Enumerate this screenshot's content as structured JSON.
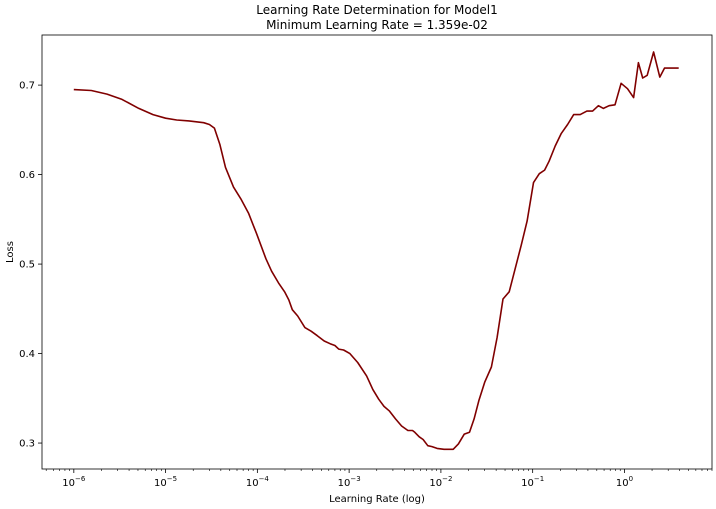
{
  "chart_data": {
    "type": "line",
    "title": "Learning Rate Determination for Model1",
    "subtitle": "Minimum Learning Rate = 1.359e-02",
    "xlabel": "Learning Rate (log)",
    "ylabel": "Loss",
    "xscale": "log",
    "xlim": [
      4.5e-07,
      9.0
    ],
    "ylim": [
      0.271,
      0.756
    ],
    "grid": false,
    "line_color": "#800000",
    "x_ticks": [
      {
        "value": 1e-06,
        "base": "10",
        "exp": "−6"
      },
      {
        "value": 1e-05,
        "base": "10",
        "exp": "−5"
      },
      {
        "value": 0.0001,
        "base": "10",
        "exp": "−4"
      },
      {
        "value": 0.001,
        "base": "10",
        "exp": "−3"
      },
      {
        "value": 0.01,
        "base": "10",
        "exp": "−2"
      },
      {
        "value": 0.1,
        "base": "10",
        "exp": "−1"
      },
      {
        "value": 1,
        "base": "10",
        "exp": "0"
      }
    ],
    "y_ticks": [
      "0.3",
      "0.4",
      "0.5",
      "0.6",
      "0.7"
    ],
    "series": [
      {
        "x": [
          1e-06,
          1.55e-06,
          2.3e-06,
          3.35e-06,
          5.1e-06,
          7.3e-06,
          1e-05,
          1.32e-05,
          1.8e-05,
          2.6e-05,
          3e-05,
          3.4e-05,
          3.9e-05,
          4.5e-05,
          5.5e-05,
          6.6e-05,
          8e-05,
          9.8e-05,
          0.000124,
          0.000143,
          0.00017,
          0.000198,
          0.00022,
          0.00024,
          0.000275,
          0.00033,
          0.000385,
          0.00045,
          0.000535,
          0.00062,
          0.0007,
          0.00077,
          0.00087,
          0.00102,
          0.00124,
          0.00155,
          0.00181,
          0.0021,
          0.0024,
          0.00273,
          0.0032,
          0.00373,
          0.00437,
          0.0049,
          0.0052,
          0.0058,
          0.0064,
          0.0072,
          0.008,
          0.0091,
          0.0108,
          0.0136,
          0.0155,
          0.018,
          0.0205,
          0.023,
          0.026,
          0.03,
          0.0355,
          0.041,
          0.0475,
          0.0555,
          0.0645,
          0.075,
          0.087,
          0.102,
          0.118,
          0.135,
          0.151,
          0.176,
          0.205,
          0.24,
          0.28,
          0.33,
          0.39,
          0.45,
          0.52,
          0.59,
          0.68,
          0.79,
          0.92,
          1.08,
          1.26,
          1.42,
          1.58,
          1.77,
          2.08,
          2.43,
          2.73,
          3.0,
          3.4,
          3.9
        ],
        "y": [
          0.695,
          0.694,
          0.69,
          0.684,
          0.674,
          0.667,
          0.663,
          0.661,
          0.66,
          0.658,
          0.656,
          0.652,
          0.634,
          0.608,
          0.586,
          0.573,
          0.557,
          0.534,
          0.506,
          0.492,
          0.479,
          0.469,
          0.46,
          0.449,
          0.442,
          0.429,
          0.425,
          0.42,
          0.414,
          0.411,
          0.409,
          0.405,
          0.404,
          0.4,
          0.39,
          0.375,
          0.36,
          0.349,
          0.341,
          0.336,
          0.327,
          0.319,
          0.314,
          0.314,
          0.312,
          0.307,
          0.304,
          0.297,
          0.296,
          0.294,
          0.293,
          0.293,
          0.299,
          0.31,
          0.312,
          0.327,
          0.348,
          0.368,
          0.385,
          0.418,
          0.461,
          0.469,
          0.495,
          0.521,
          0.548,
          0.591,
          0.601,
          0.605,
          0.615,
          0.632,
          0.646,
          0.656,
          0.667,
          0.667,
          0.671,
          0.671,
          0.677,
          0.674,
          0.677,
          0.678,
          0.702,
          0.696,
          0.686,
          0.725,
          0.708,
          0.711,
          0.737,
          0.709,
          0.719,
          0.719,
          0.719,
          0.719
        ]
      }
    ]
  }
}
